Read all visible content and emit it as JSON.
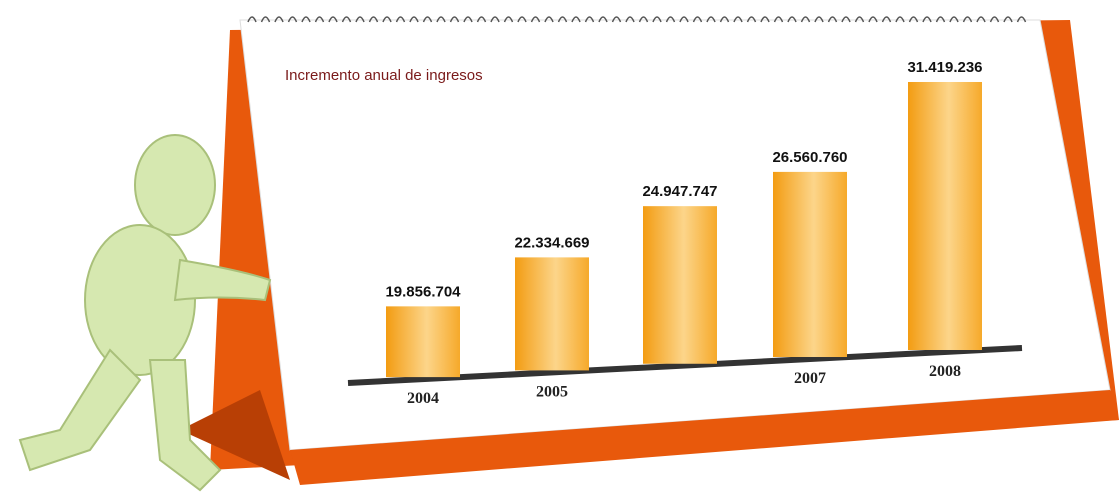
{
  "chart_data": {
    "type": "bar",
    "title": "Incremento anual de ingresos",
    "categories": [
      "2004",
      "2005",
      null,
      "2007",
      "2008"
    ],
    "values": [
      19856704,
      22334669,
      24947747,
      26560760,
      31419236
    ],
    "value_labels": [
      "19.856.704",
      "22.334.669",
      "24.947.747",
      "26.560.760",
      "31.419.236"
    ],
    "color": "#f5a623"
  }
}
